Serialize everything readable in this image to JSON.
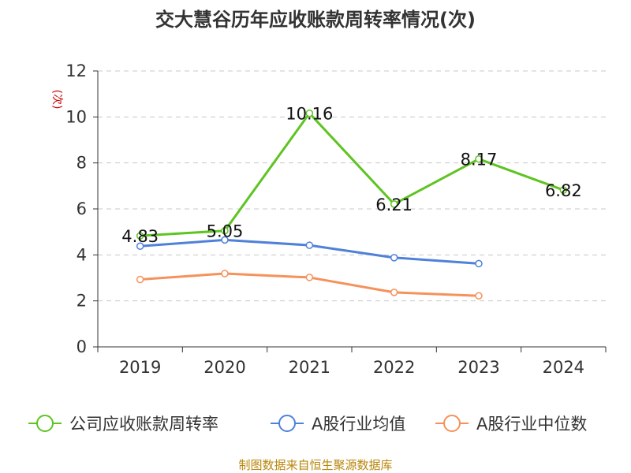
{
  "chart_data": {
    "type": "line",
    "title": "交大慧谷历年应收账款周转率情况(次)",
    "ylabel": "(次)",
    "xlabel": "",
    "categories": [
      "2019",
      "2020",
      "2021",
      "2022",
      "2023",
      "2024"
    ],
    "ylim": [
      0,
      12
    ],
    "yticks": [
      0,
      2,
      4,
      6,
      8,
      10,
      12
    ],
    "grid": true,
    "legend_position": "bottom",
    "series": [
      {
        "name": "公司应收账款周转率",
        "color": "#5ec421",
        "values": [
          4.83,
          5.05,
          10.16,
          6.21,
          8.17,
          6.82
        ],
        "labels": [
          "4.83",
          "5.05",
          "10.16",
          "6.21",
          "8.17",
          "6.82"
        ]
      },
      {
        "name": "A股行业均值",
        "color": "#4f81d9",
        "values": [
          4.38,
          4.65,
          4.42,
          3.88,
          3.62,
          null
        ]
      },
      {
        "name": "A股行业中位数",
        "color": "#f5925b",
        "values": [
          2.93,
          3.19,
          3.02,
          2.37,
          2.22,
          null
        ]
      }
    ]
  },
  "source": "制图数据来自恒生聚源数据库"
}
